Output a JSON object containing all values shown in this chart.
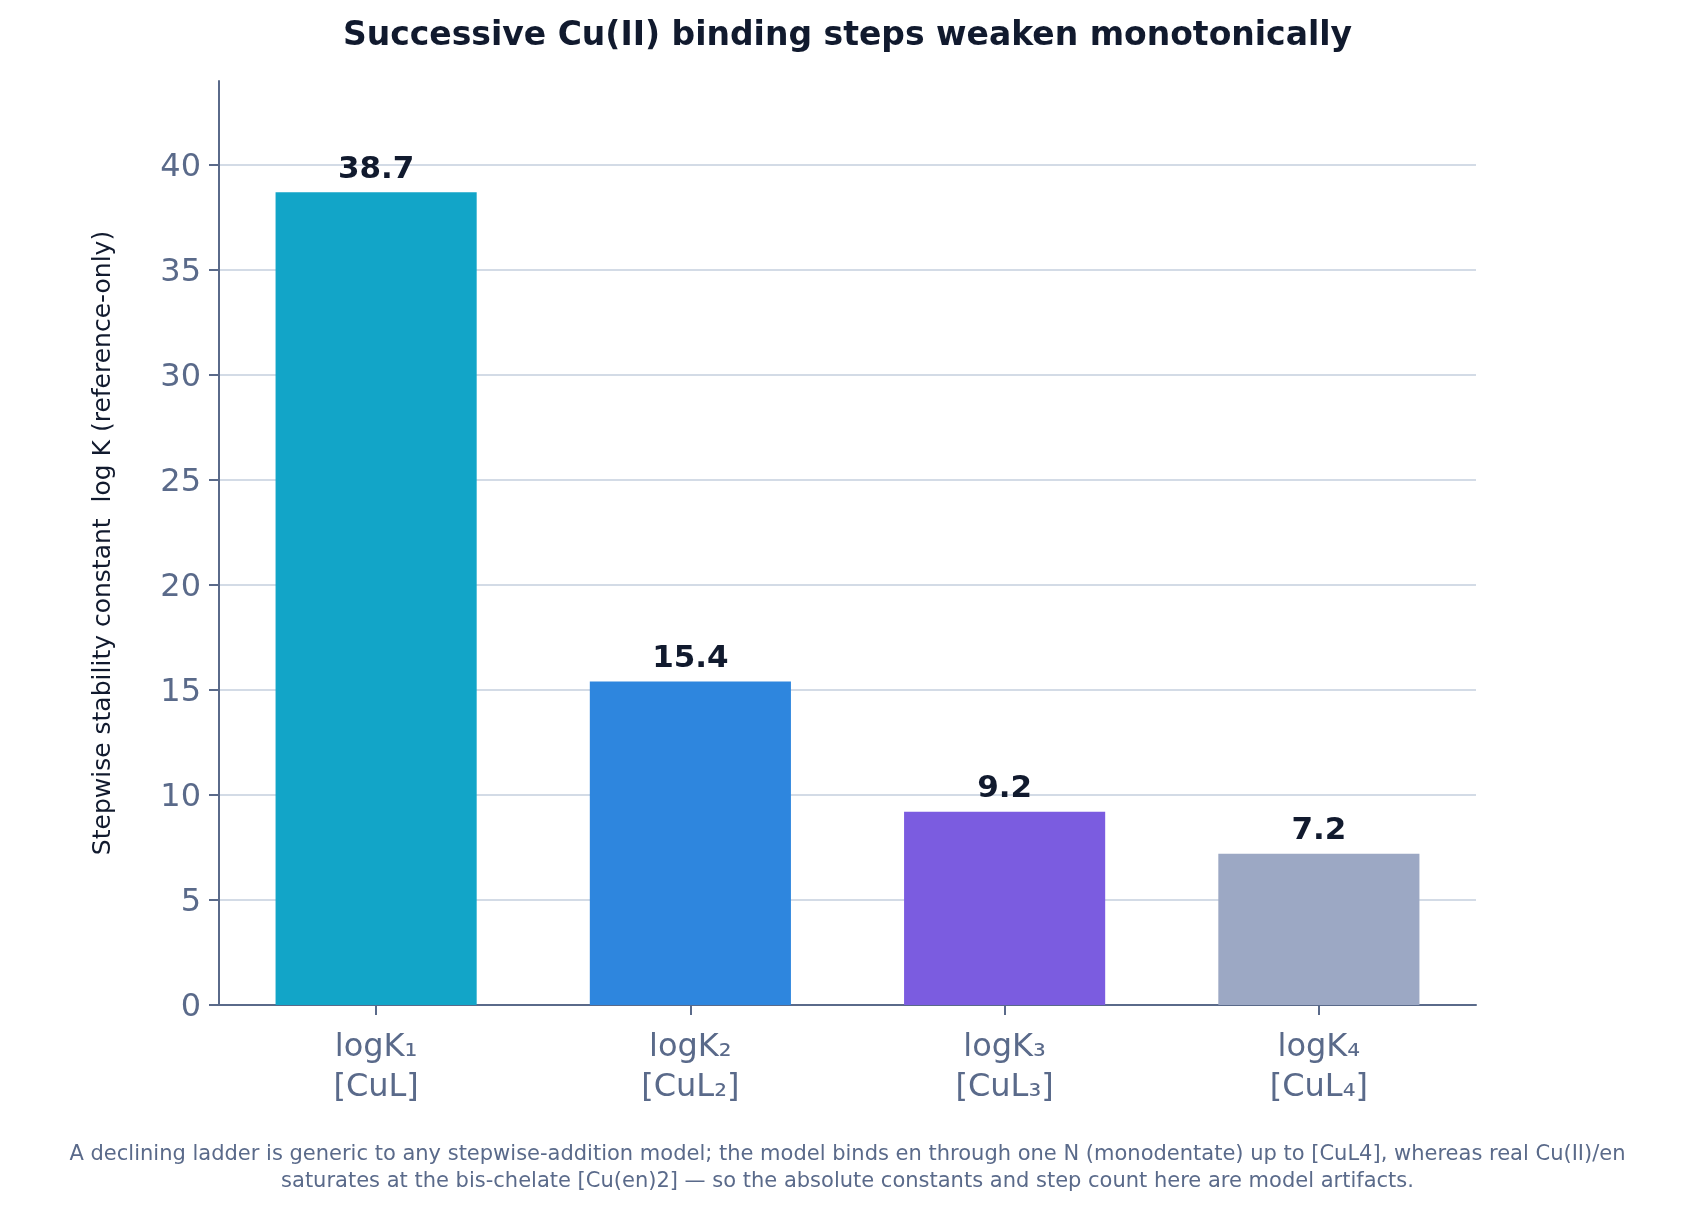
{
  "chart_data": {
    "type": "bar",
    "title": "Successive Cu(II) binding steps weaken monotonically",
    "ylabel": "Stepwise stability constant  log K (reference-only)",
    "categories": [
      "logK₁\n[CuL]",
      "logK₂\n[CuL₂]",
      "logK₃\n[CuL₃]",
      "logK₄\n[CuL₄]"
    ],
    "values": [
      38.7,
      15.4,
      9.2,
      7.2
    ],
    "colors": [
      "#12a5c8",
      "#2e86de",
      "#7b5ce0",
      "#9ca8c4"
    ],
    "ylim": [
      0,
      44
    ],
    "yticks": [
      0,
      5,
      10,
      15,
      20,
      25,
      30,
      35,
      40
    ],
    "grid": "y",
    "data_labels": true,
    "annotations": [
      "A declining ladder is generic to any stepwise-addition model; the model binds en through one N (monodentate) up to [CuL4], whereas real Cu(II)/en saturates at the bis-chelate [Cu(en)2] — so the absolute constants and step count here are model artifacts."
    ]
  }
}
